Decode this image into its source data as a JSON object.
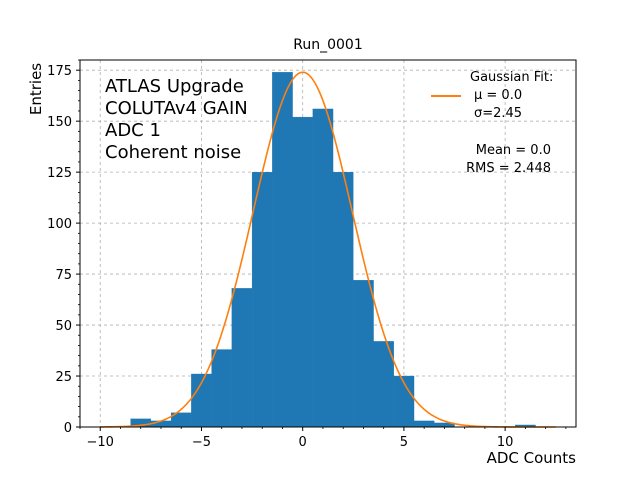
{
  "chart_data": {
    "type": "histogram",
    "title": "Run_0001",
    "xlabel": "ADC Counts",
    "ylabel": "Entries",
    "xlim": [
      -11,
      13.5
    ],
    "ylim": [
      0,
      180
    ],
    "xticks": [
      -10,
      -5,
      0,
      5,
      10
    ],
    "yticks": [
      0,
      25,
      50,
      75,
      100,
      125,
      150,
      175
    ],
    "grid": true,
    "bin_edges": [
      -8.5,
      -7.5,
      -6.5,
      -5.5,
      -4.5,
      -3.5,
      -2.5,
      -1.5,
      -0.5,
      0.5,
      1.5,
      2.5,
      3.5,
      4.5,
      5.5,
      6.5,
      7.5,
      8.5,
      9.5,
      10.5,
      11.5,
      12.5
    ],
    "bin_counts": [
      4,
      3,
      7,
      26,
      38,
      68,
      125,
      174,
      152,
      156,
      125,
      72,
      42,
      25,
      3,
      2,
      0,
      0,
      0,
      1,
      0
    ],
    "bar_color": "#1f77b4",
    "fit": {
      "mu": 0.0,
      "sigma": 2.45,
      "peak": 174,
      "x_range": [
        -10,
        12.5
      ],
      "color": "#ff7f0e"
    },
    "annotations": {
      "lines": [
        "ATLAS Upgrade",
        "COLUTAv4 GAIN",
        "ADC 1",
        "Coherent noise"
      ]
    },
    "legend": {
      "placement": "top-right",
      "title": "Gaussian Fit:",
      "lines": [
        "μ = 0.0",
        "σ=2.45"
      ]
    },
    "stats": {
      "mean": "Mean = 0.0",
      "rms": "RMS = 2.448"
    }
  }
}
